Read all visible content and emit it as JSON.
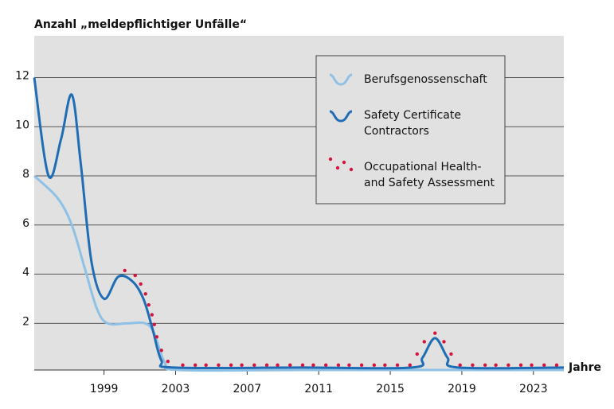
{
  "chart_data": {
    "type": "line",
    "title": "Anzahl „meldepflichtiger Unfälle“",
    "x_label": "Jahre",
    "xlim": [
      1995.1,
      2024.7
    ],
    "xticks": [
      1999,
      2003,
      2007,
      2011,
      2015,
      2019,
      2023
    ],
    "ylim": [
      0.1,
      13.7
    ],
    "yticks": [
      2,
      4,
      6,
      8,
      10,
      12
    ],
    "grid": true,
    "legend": "upper right",
    "series": [
      {
        "name": "Berufsgenossenschaft",
        "color": "#8fc1e6",
        "style": "line",
        "x": [
          1995.1,
          1996.4,
          1997.2,
          1997.9,
          1998.6,
          1999.2,
          2000.3,
          2001.3,
          2001.8,
          2002.4,
          2003.2,
          2010,
          2020,
          2024.7
        ],
        "values": [
          8,
          7.1,
          6,
          4.3,
          2.6,
          2,
          2,
          2,
          1.6,
          0.4,
          0.1,
          0.1,
          0.1,
          0.1
        ]
      },
      {
        "name": "Safety Certificate Contractors",
        "color": "#1f6db4",
        "style": "line",
        "x": [
          1995.1,
          1995.9,
          1996.6,
          1997.2,
          1997.7,
          1998.3,
          1999,
          1999.8,
          2000.6,
          2001.2,
          2001.7,
          2002.2,
          2002.9,
          2010,
          2016.2,
          2016.8,
          2017.5,
          2018.2,
          2018.8,
          2024.7
        ],
        "values": [
          12,
          8,
          9.5,
          11.3,
          8.5,
          4.5,
          3,
          3.9,
          3.7,
          3,
          1.8,
          0.5,
          0.2,
          0.2,
          0.2,
          0.6,
          1.4,
          0.6,
          0.2,
          0.2
        ]
      },
      {
        "name": "Occupational Health- and Safety Assessment",
        "color": "#d4143c",
        "style": "dots",
        "x": [
          2000.16,
          2000.74,
          2001.05,
          2001.32,
          2001.5,
          2001.68,
          2001.81,
          2001.95,
          2002.21,
          2002.57,
          2003.4,
          2004.1,
          2004.7,
          2005.4,
          2006.1,
          2006.7,
          2007.4,
          2008.1,
          2008.7,
          2009.4,
          2010.1,
          2010.7,
          2011.4,
          2012.1,
          2012.7,
          2013.4,
          2014.1,
          2014.7,
          2015.4,
          2016.1,
          2016.5,
          2016.9,
          2017.5,
          2018.0,
          2018.4,
          2018.9,
          2019.6,
          2020.3,
          2020.9,
          2021.6,
          2022.3,
          2022.9,
          2023.6,
          2024.3
        ],
        "values": [
          4.15,
          3.95,
          3.6,
          3.2,
          2.75,
          2.35,
          1.95,
          1.45,
          0.9,
          0.45,
          0.3,
          0.3,
          0.3,
          0.3,
          0.3,
          0.3,
          0.3,
          0.3,
          0.3,
          0.3,
          0.3,
          0.3,
          0.3,
          0.3,
          0.3,
          0.3,
          0.3,
          0.3,
          0.3,
          0.3,
          0.75,
          1.25,
          1.6,
          1.25,
          0.75,
          0.3,
          0.3,
          0.3,
          0.3,
          0.3,
          0.3,
          0.3,
          0.3,
          0.3
        ]
      }
    ]
  }
}
